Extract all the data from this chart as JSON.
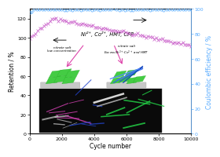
{
  "title": "",
  "xlabel": "Cycle number",
  "ylabel_left": "Retention / %",
  "ylabel_right": "Coulombic efficiency / %",
  "xlim": [
    0,
    10000
  ],
  "ylim_left": [
    0,
    130
  ],
  "ylim_right": [
    0,
    100
  ],
  "yticks_left": [
    0,
    20,
    40,
    60,
    80,
    100,
    120
  ],
  "yticks_right": [
    0,
    20,
    40,
    60,
    80,
    100
  ],
  "xticks": [
    0,
    2000,
    4000,
    6000,
    8000,
    10000
  ],
  "retention_color": "#cc66cc",
  "coulombic_color": "#55aaff",
  "annotation_text": "Ni²⁺, Co²⁺, HMT, CFP",
  "background_color": "#ffffff"
}
